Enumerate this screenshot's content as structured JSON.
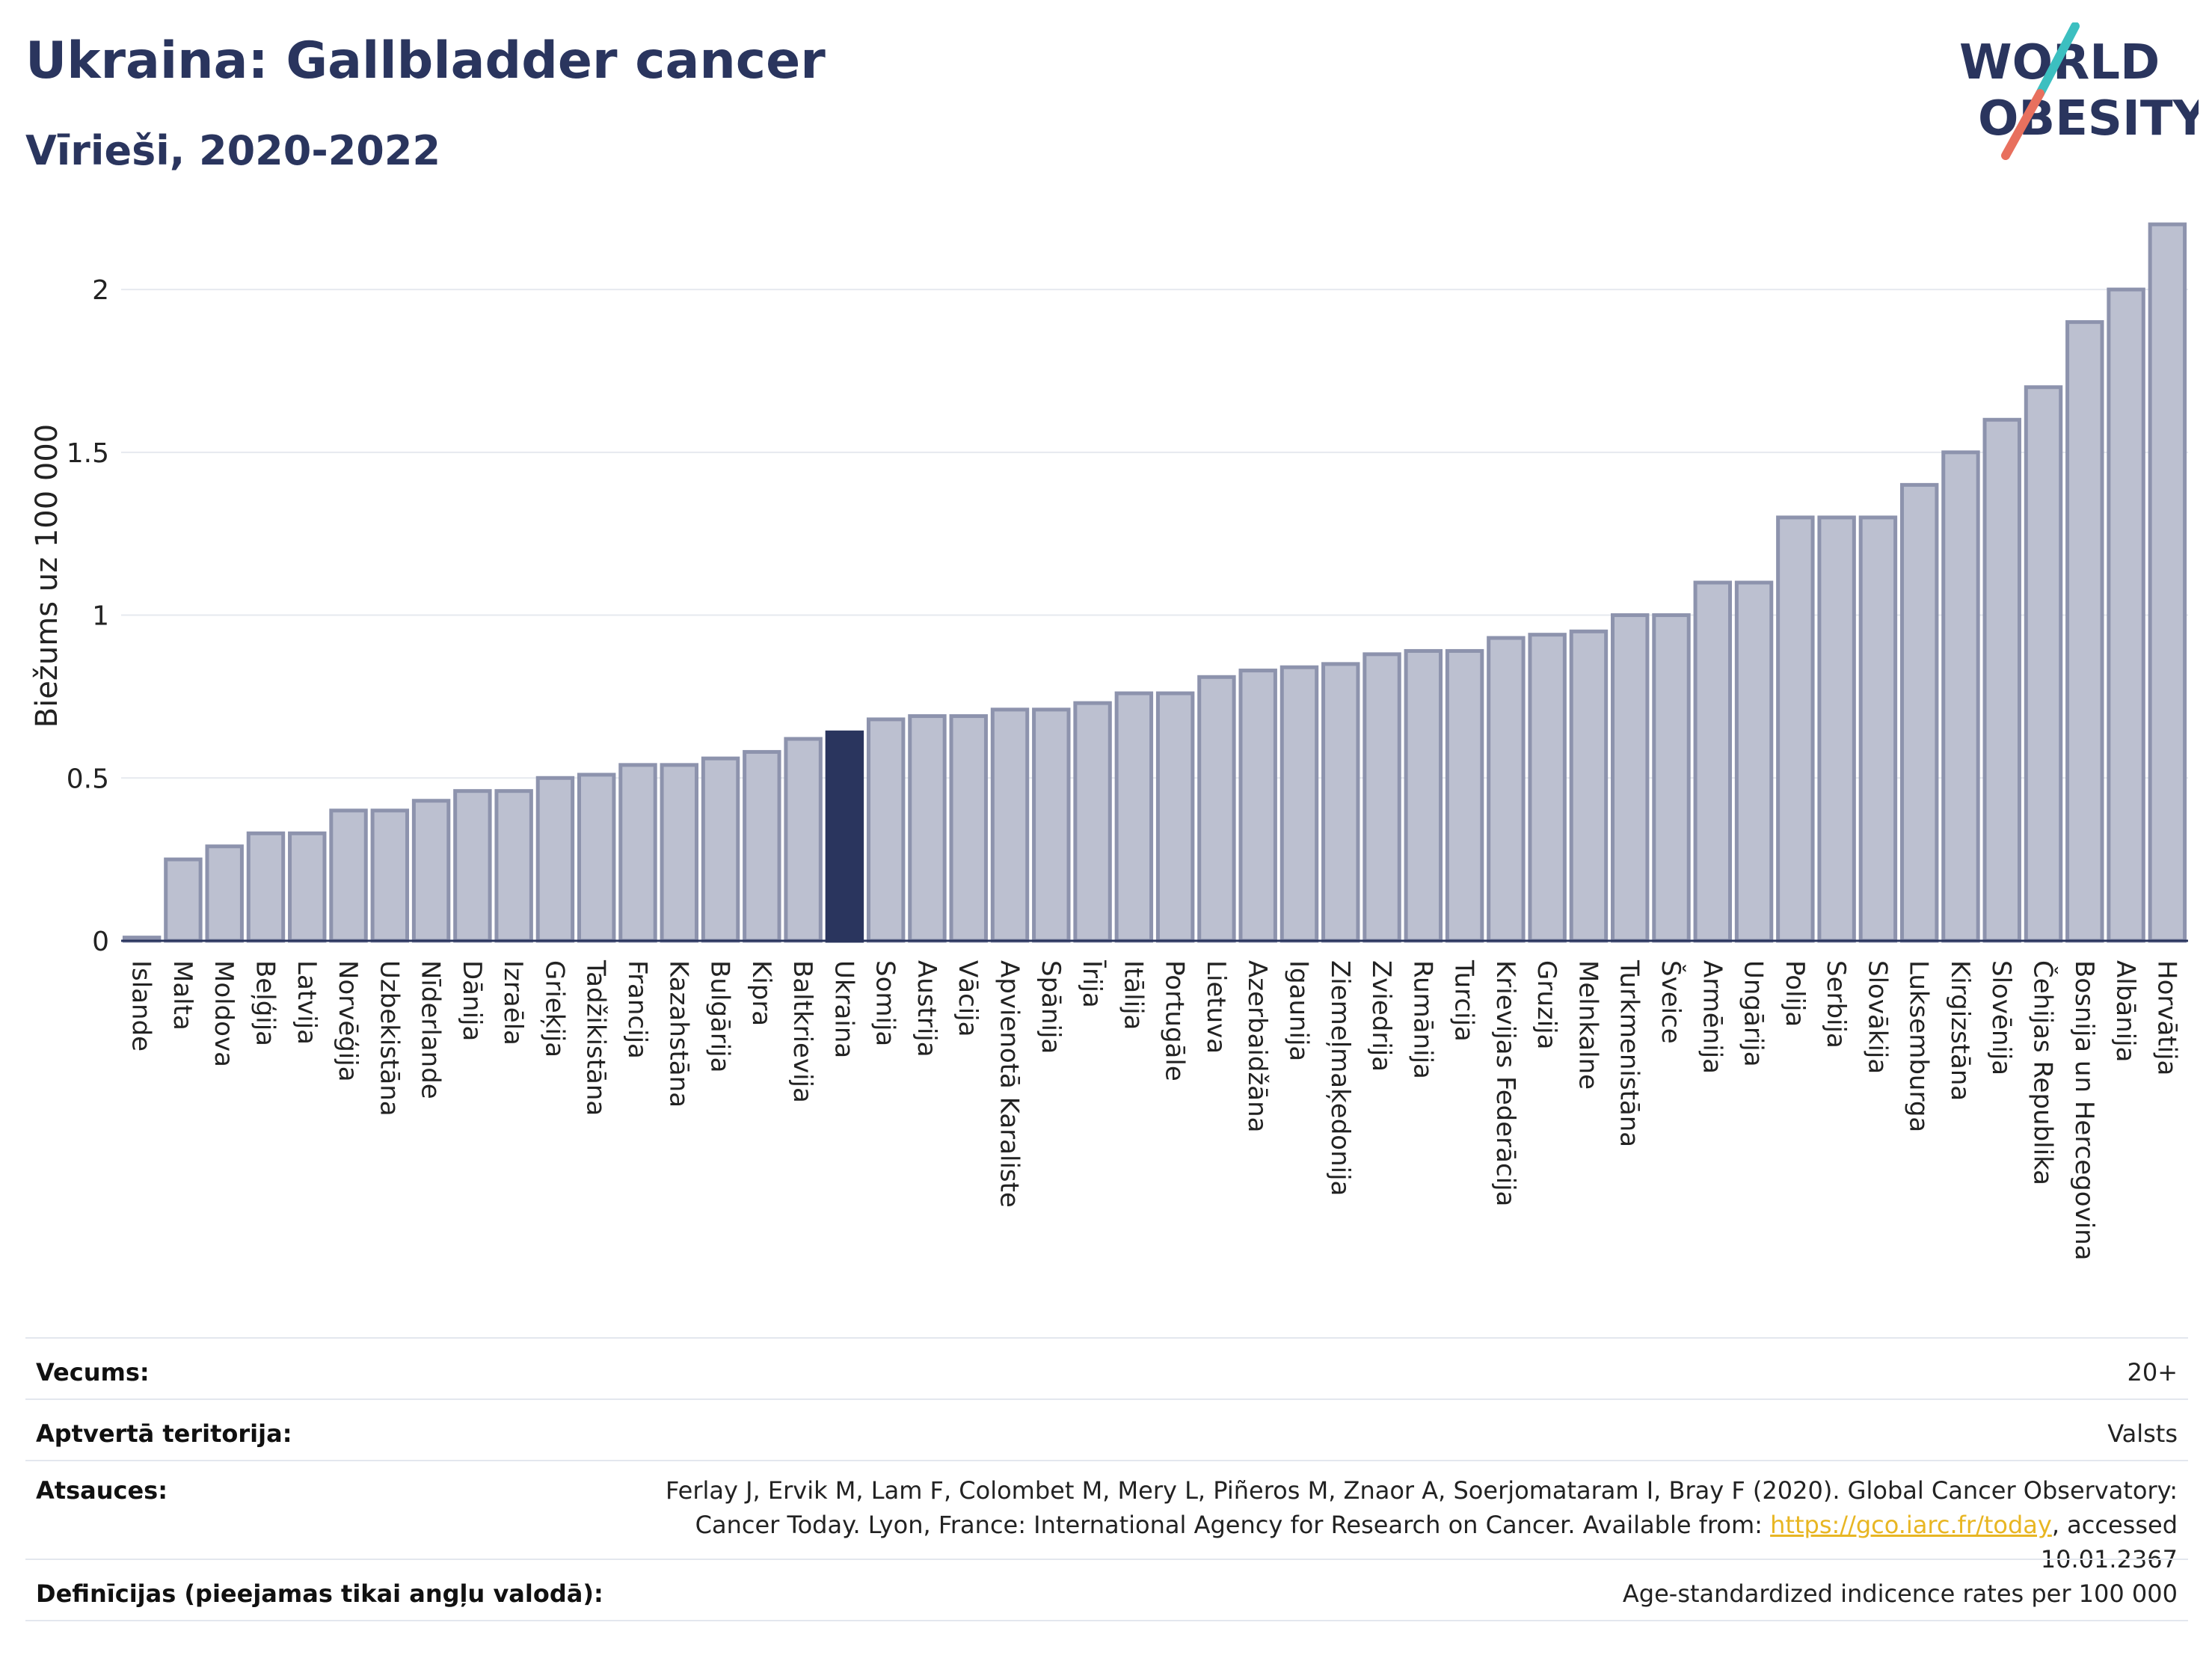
{
  "header": {
    "title": "Ukraina: Gallbladder cancer",
    "subtitle": "Vīrieši, 2020-2022"
  },
  "logo": {
    "line1": "WORLD",
    "line2": "OBESITY",
    "colors": {
      "text": "#2a355e",
      "slash_top": "#3cbfc0",
      "slash_bottom": "#e8705e"
    }
  },
  "chart_data": {
    "type": "bar",
    "ylabel": "Biežums uz 100 000",
    "xlabel": "",
    "ylim": [
      0,
      2.2
    ],
    "yticks": [
      0,
      0.5,
      1,
      1.5,
      2
    ],
    "ytick_labels": [
      "0",
      "0.5",
      "1",
      "1.5",
      "2"
    ],
    "grid": true,
    "highlight": "Ukraina",
    "colors": {
      "bar": "#bcc0d0",
      "bar_edge": "#8d93ad",
      "highlight": "#2a355e"
    },
    "categories": [
      "Islande",
      "Malta",
      "Moldova",
      "Beļģija",
      "Latvija",
      "Norvēģija",
      "Uzbekistāna",
      "Nīderlande",
      "Dānija",
      "Izraēla",
      "Grieķija",
      "Tadžikistāna",
      "Francija",
      "Kazahstāna",
      "Bulgārija",
      "Kipra",
      "Baltkrievija",
      "Ukraina",
      "Somija",
      "Austrija",
      "Vācija",
      "Apvienotā Karaliste",
      "Spānija",
      "Īrija",
      "Itālija",
      "Portugāle",
      "Lietuva",
      "Azerbaidžāna",
      "Igaunija",
      "Ziemeļmaķedonija",
      "Zviedrija",
      "Rumānija",
      "Turcija",
      "Krievijas Federācija",
      "Gruzija",
      "Melnkalne",
      "Turkmenistāna",
      "Šveice",
      "Armēnija",
      "Ungārija",
      "Polija",
      "Serbija",
      "Slovākija",
      "Luksemburga",
      "Kirgizstāna",
      "Slovēnija",
      "Čehijas Republika",
      "Bosnija un Hercegovina",
      "Albānija",
      "Horvātija"
    ],
    "values": [
      0.01,
      0.25,
      0.29,
      0.33,
      0.33,
      0.4,
      0.4,
      0.43,
      0.46,
      0.46,
      0.5,
      0.51,
      0.54,
      0.54,
      0.56,
      0.58,
      0.62,
      0.64,
      0.68,
      0.69,
      0.69,
      0.71,
      0.71,
      0.73,
      0.76,
      0.76,
      0.81,
      0.83,
      0.84,
      0.85,
      0.88,
      0.89,
      0.89,
      0.93,
      0.94,
      0.95,
      1.0,
      1.0,
      1.1,
      1.1,
      1.3,
      1.3,
      1.3,
      1.4,
      1.5,
      1.6,
      1.7,
      1.9,
      2.0,
      2.2
    ]
  },
  "info": {
    "age_label": "Vecums:",
    "age_value": "20+",
    "territory_label": "Aptvertā teritorija:",
    "territory_value": "Valsts",
    "refs_label": "Atsauces:",
    "refs_text1": "Ferlay J, Ervik M, Lam F, Colombet M, Mery L, Piñeros M, Znaor A, Soerjomataram I, Bray F (2020). Global Cancer Observatory: Cancer Today. Lyon, France: International Agency for Research on Cancer. Available from: ",
    "refs_link": "https://gco.iarc.fr/today",
    "refs_text2": ", accessed 10.01.2367",
    "definitions_label": "Definīcijas (pieejamas tikai angļu valodā):",
    "definitions_value": "Age-standardized indicence rates per 100 000"
  }
}
